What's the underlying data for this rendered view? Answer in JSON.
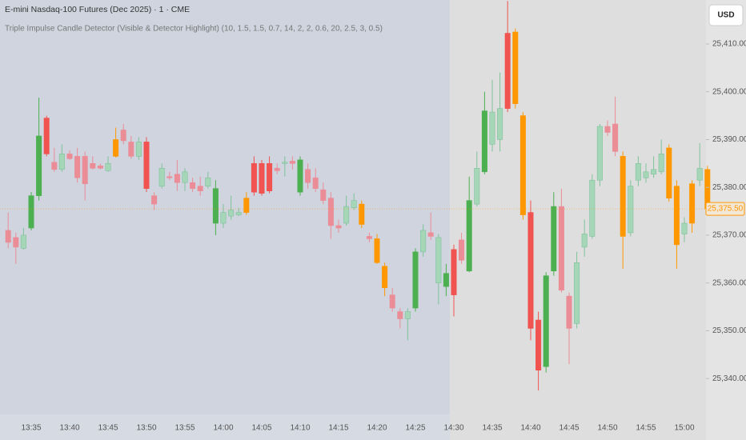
{
  "chart_data": {
    "type": "candlestick",
    "title": "E-mini Nasdaq-100 Futures (Dec 2025) · 1 · CME",
    "subtitle": "Triple Impulse Candle Detector (Visible & Detector Highlight) (10, 1.5, 1.5, 0.7, 14, 2, 2, 0.6, 20, 2.5, 3, 0.5)",
    "currency": "USD",
    "categories": [
      null,
      null,
      null,
      "13:35",
      null,
      null,
      null,
      null,
      "13:40",
      null,
      null,
      null,
      null,
      "13:45",
      null,
      null,
      null,
      null,
      "13:50",
      null,
      null,
      null,
      null,
      "13:55",
      null,
      null,
      null,
      null,
      "14:00",
      null,
      null,
      null,
      null,
      "14:05",
      null,
      null,
      null,
      null,
      "14:10",
      null,
      null,
      null,
      null,
      "14:15",
      null,
      null,
      null,
      null,
      "14:20",
      null,
      null,
      null,
      null,
      "14:25",
      null,
      null,
      null,
      null,
      "14:30",
      null,
      null,
      null,
      null,
      "14:35",
      null,
      null,
      null,
      null,
      "14:40",
      null,
      null,
      null,
      null,
      "14:45",
      null,
      null,
      null,
      null,
      "14:50",
      null,
      null,
      null,
      null,
      "14:55",
      null,
      null,
      null,
      null,
      "15:00",
      null,
      null,
      null
    ],
    "open": [
      25371,
      25369.5,
      25367.25,
      25371.5,
      25378.25,
      25394.5,
      25385.25,
      25383.75,
      25387,
      25386.5,
      25386.5,
      25385,
      25384.5,
      25383.5,
      25386.5,
      25392,
      25389.5,
      25386.5,
      25389.5,
      25378.25,
      25380.25,
      25382.25,
      25382.75,
      25381,
      25381,
      25380.25,
      25380.25,
      25372.5,
      25372.5,
      25374,
      25374.25,
      25374.75,
      25385,
      25385,
      25385,
      25384,
      25385,
      25385.5,
      25379,
      25383.75,
      25382,
      25379.5,
      25377.75,
      25372,
      25372.5,
      25375.75,
      25376.5,
      25369.75,
      25369.25,
      25363.5,
      25357.5,
      25354,
      25352.5,
      25354.75,
      25366.5,
      25370.5,
      25360,
      25359.25,
      25367,
      25369,
      25362.5,
      25376.5,
      25383.25,
      25389,
      25390,
      25412.25,
      25397.5,
      25395,
      25374.75,
      25352.25,
      25342.5,
      25362.5,
      25376,
      25357.25,
      25351.5,
      25367.5,
      25369.75,
      25381.5,
      25392.75,
      25393.25,
      25386.5,
      25370.5,
      25381.5,
      25382,
      25382.75,
      25383.25,
      25388.25,
      25380.25,
      25370.25,
      25380.75,
      25381.5,
      25383.75
    ],
    "high": [
      25374.75,
      25370.5,
      25371.5,
      25379,
      25398.75,
      25395,
      25388.25,
      25389,
      25387.75,
      25388.25,
      25387.5,
      25386.5,
      25385,
      25386.5,
      25392.5,
      25393.25,
      25390.75,
      25390.5,
      25390.5,
      25379,
      25385,
      25383.25,
      25385.75,
      25384,
      25382,
      25382.25,
      25383.25,
      25381.5,
      25376.5,
      25378.25,
      25375.75,
      25379,
      25386.5,
      25385.75,
      25386.5,
      25385,
      25386.5,
      25386.5,
      25386.5,
      25385,
      25384,
      25381,
      25379,
      25373.25,
      25378.25,
      25378.75,
      25377.25,
      25370.5,
      25370.25,
      25364.25,
      25359,
      25354.75,
      25354.75,
      25367.25,
      25372.25,
      25374.75,
      25370.25,
      25364,
      25368,
      25370.5,
      25382.25,
      25387.5,
      25400,
      25402.5,
      25404,
      25419,
      25413.25,
      25395.75,
      25377.25,
      25354,
      25362.25,
      25379,
      25379.75,
      25358,
      25366.5,
      25373.25,
      25382.75,
      25393.25,
      25394,
      25399,
      25387.5,
      25381.5,
      25386.5,
      25385,
      25386.5,
      25390,
      25389,
      25381.5,
      25373.75,
      25381.5,
      25389.25,
      25384.5
    ],
    "low": [
      25367.25,
      25364,
      25367,
      25371,
      25377.25,
      25386.5,
      25383.25,
      25383.25,
      25385.75,
      25381,
      25377.25,
      25383.75,
      25383.75,
      25383.25,
      25386.25,
      25389,
      25386,
      25385.75,
      25379,
      25375.25,
      25379.75,
      25381.5,
      25379.25,
      25379.25,
      25379,
      25378.25,
      25379.75,
      25370,
      25371.5,
      25373.25,
      25374,
      25374.25,
      25378.25,
      25378.25,
      25378.75,
      25382.75,
      25382.25,
      25383.75,
      25378.25,
      25379.75,
      25379,
      25376.5,
      25369.25,
      25370.5,
      25372,
      25375.25,
      25371.5,
      25368.5,
      25364,
      25357.25,
      25354,
      25350.5,
      25348,
      25354,
      25365.5,
      25369,
      25355.5,
      25357.25,
      25353,
      25364,
      25362.25,
      25376,
      25382.75,
      25387.5,
      25387.5,
      25395.75,
      25396.5,
      25373.25,
      25348,
      25337.5,
      25341.25,
      25361.5,
      25358,
      25343,
      25350.5,
      25365.5,
      25369.25,
      25380.25,
      25390.75,
      25386.5,
      25363,
      25369.75,
      25380.25,
      25381,
      25382,
      25382.75,
      25377,
      25363,
      25368.5,
      25370.5,
      25380.25,
      25374.75
    ],
    "close": [
      25368.5,
      25367.5,
      25370,
      25378.25,
      25390.75,
      25387,
      25383.75,
      25387,
      25386,
      25382,
      25380.75,
      25384,
      25384,
      25385,
      25390,
      25389.75,
      25386.5,
      25389.5,
      25379.75,
      25376.5,
      25384,
      25382,
      25381,
      25383.25,
      25379.75,
      25379.25,
      25382,
      25379.75,
      25374.75,
      25375.25,
      25374.75,
      25377.75,
      25379,
      25378.75,
      25379.25,
      25383.5,
      25385.25,
      25385,
      25385.75,
      25381,
      25379.75,
      25377.25,
      25372,
      25371.5,
      25376,
      25377.25,
      25372.25,
      25369.25,
      25364.25,
      25359,
      25354.75,
      25352.5,
      25354,
      25366.5,
      25371,
      25369.75,
      25369.5,
      25362,
      25357.5,
      25364.75,
      25377.25,
      25384,
      25396,
      25395.75,
      25396.5,
      25396.5,
      25412.5,
      25374.25,
      25350.5,
      25341.75,
      25361.5,
      25376,
      25358.5,
      25350.5,
      25364.25,
      25370.25,
      25381.5,
      25392.75,
      25391.5,
      25387.5,
      25369.75,
      25380.25,
      25385,
      25383.25,
      25383.75,
      25387,
      25377.75,
      25368,
      25372.5,
      25372.5,
      25384,
      25375.5
    ],
    "colors": [
      "#eb8d97",
      "#eb8d97",
      "#a5d6b7",
      "#4caf50",
      "#4caf50",
      "#f05350",
      "#eb8d97",
      "#a5d6b7",
      "#eb8d97",
      "#eb8d97",
      "#eb8d97",
      "#eb8d97",
      "#eb8d97",
      "#a5d6b7",
      "#ff9800",
      "#eb8d97",
      "#eb8d97",
      "#a5d6b7",
      "#f05350",
      "#eb8d97",
      "#a5d6b7",
      "#eb8d97",
      "#eb8d97",
      "#a5d6b7",
      "#eb8d97",
      "#eb8d97",
      "#a5d6b7",
      "#4caf50",
      "#a5d6b7",
      "#a5d6b7",
      "#a5d6b7",
      "#ff9800",
      "#f05350",
      "#f05350",
      "#f05350",
      "#eb8d97",
      "#a5d6b7",
      "#eb8d97",
      "#4caf50",
      "#eb8d97",
      "#eb8d97",
      "#eb8d97",
      "#eb8d97",
      "#eb8d97",
      "#a5d6b7",
      "#a5d6b7",
      "#ff9800",
      "#eb8d97",
      "#ff9800",
      "#ff9800",
      "#eb8d97",
      "#eb8d97",
      "#a5d6b7",
      "#4caf50",
      "#a5d6b7",
      "#eb8d97",
      "#a5d6b7",
      "#4caf50",
      "#f05350",
      "#eb8d97",
      "#4caf50",
      "#a5d6b7",
      "#4caf50",
      "#a5d6b7",
      "#a5d6b7",
      "#f05350",
      "#ff9800",
      "#ff9800",
      "#f05350",
      "#f05350",
      "#4caf50",
      "#4caf50",
      "#eb8d97",
      "#eb8d97",
      "#a5d6b7",
      "#a5d6b7",
      "#a5d6b7",
      "#a5d6b7",
      "#eb8d97",
      "#eb8d97",
      "#ff9800",
      "#a5d6b7",
      "#a5d6b7",
      "#a5d6b7",
      "#a5d6b7",
      "#a5d6b7",
      "#ff9800",
      "#ff9800",
      "#a5d6b7",
      "#ff9800",
      "#a5d6b7",
      "#ff9800"
    ],
    "ylim": [
      25332.5,
      25419.2
    ],
    "yticks": [
      {
        "value": 25340,
        "label": "25,340.00"
      },
      {
        "value": 25350,
        "label": "25,350.00"
      },
      {
        "value": 25360,
        "label": "25,360.00"
      },
      {
        "value": 25370,
        "label": "25,370.00"
      },
      {
        "value": 25380,
        "label": "25,380.00"
      },
      {
        "value": 25390,
        "label": "25,390.00"
      },
      {
        "value": 25400,
        "label": "25,400.00"
      },
      {
        "value": 25410,
        "label": "25,410.00"
      }
    ],
    "last_price": {
      "value": 25375.5,
      "label": "25,375.50",
      "color": "#ff9800"
    },
    "grid": false
  }
}
